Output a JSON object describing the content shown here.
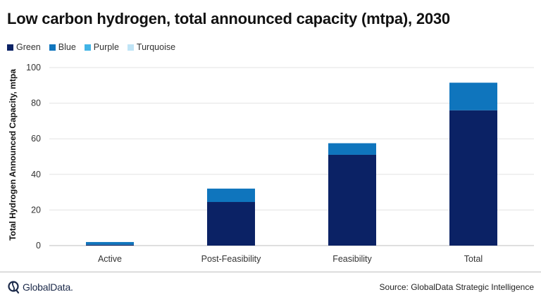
{
  "title": "Low carbon hydrogen, total announced capacity (mtpa), 2030",
  "legend": [
    {
      "label": "Green",
      "color": "#0b2265"
    },
    {
      "label": "Blue",
      "color": "#0f75bd"
    },
    {
      "label": "Purple",
      "color": "#42b4e6"
    },
    {
      "label": "Turquoise",
      "color": "#bfe4f6"
    }
  ],
  "footer": {
    "logo_text": "GlobalData.",
    "logo_icon": "globaldata-logo-icon",
    "source": "Source: GlobalData Strategic Intelligence"
  },
  "chart_data": {
    "type": "bar",
    "stacked": true,
    "title": "Low carbon hydrogen, total announced capacity (mtpa), 2030",
    "xlabel": "",
    "ylabel": "Total Hydrogen Announced Capacity, mtpa",
    "categories": [
      "Active",
      "Post-Feasibility",
      "Feasibility",
      "Total"
    ],
    "series": [
      {
        "name": "Green",
        "color": "#0b2265",
        "values": [
          0.5,
          24.5,
          51,
          76
        ]
      },
      {
        "name": "Blue",
        "color": "#0f75bd",
        "values": [
          1.5,
          7.5,
          6.5,
          15.5
        ]
      },
      {
        "name": "Purple",
        "color": "#42b4e6",
        "values": [
          0,
          0,
          0,
          0
        ]
      },
      {
        "name": "Turquoise",
        "color": "#bfe4f6",
        "values": [
          0,
          0,
          0,
          0
        ]
      }
    ],
    "ylim": [
      0,
      100
    ],
    "yticks": [
      0,
      20,
      40,
      60,
      80,
      100
    ],
    "grid": true,
    "legend_position": "top-left"
  }
}
